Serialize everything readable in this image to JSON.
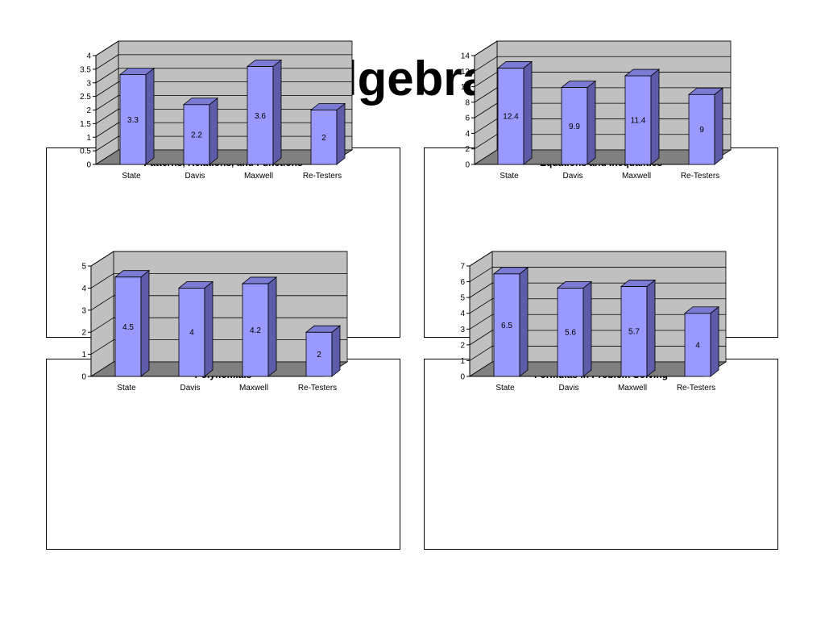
{
  "slide": {
    "title": "Algebra I"
  },
  "chart_data": [
    {
      "type": "bar",
      "title": "Patterns, Relations, and Functions",
      "categories": [
        "State",
        "Davis",
        "Maxwell",
        "Re-Testers"
      ],
      "values": [
        3.3,
        2.2,
        3.6,
        2
      ],
      "data_labels": [
        "3.3",
        "2.2",
        "3.6",
        "2"
      ],
      "ylim": [
        0,
        4
      ],
      "yticks": [
        "0",
        "0.5",
        "1",
        "1.5",
        "2",
        "2.5",
        "3",
        "3.5",
        "4"
      ],
      "grid": true,
      "three_d": true,
      "colors": {
        "bar_front": "#9999ff",
        "bar_side": "#5c5ca8",
        "bar_top": "#7b7bd4",
        "wall": "#c0c0c0",
        "floor": "#808080"
      }
    },
    {
      "type": "bar",
      "title": "Equations and Inequalities",
      "categories": [
        "State",
        "Davis",
        "Maxwell",
        "Re-Testers"
      ],
      "values": [
        12.4,
        9.9,
        11.4,
        9
      ],
      "data_labels": [
        "12.4",
        "9.9",
        "11.4",
        "9"
      ],
      "ylim": [
        0,
        14
      ],
      "yticks": [
        "0",
        "2",
        "4",
        "6",
        "8",
        "10",
        "12",
        "14"
      ],
      "grid": true,
      "three_d": true,
      "colors": {
        "bar_front": "#9999ff",
        "bar_side": "#5c5ca8",
        "bar_top": "#7b7bd4",
        "wall": "#c0c0c0",
        "floor": "#808080"
      }
    },
    {
      "type": "bar",
      "title": "Polynomials",
      "categories": [
        "State",
        "Davis",
        "Maxwell",
        "Re-Testers"
      ],
      "values": [
        4.5,
        4,
        4.2,
        2
      ],
      "data_labels": [
        "4.5",
        "4",
        "4.2",
        "2"
      ],
      "ylim": [
        0,
        5
      ],
      "yticks": [
        "0",
        "1",
        "2",
        "3",
        "4",
        "5"
      ],
      "grid": true,
      "three_d": true,
      "colors": {
        "bar_front": "#9999ff",
        "bar_side": "#5c5ca8",
        "bar_top": "#7b7bd4",
        "wall": "#c0c0c0",
        "floor": "#808080"
      }
    },
    {
      "type": "bar",
      "title": "Formulas in Problem Solving",
      "categories": [
        "State",
        "Davis",
        "Maxwell",
        "Re-Testers"
      ],
      "values": [
        6.5,
        5.6,
        5.7,
        4
      ],
      "data_labels": [
        "6.5",
        "5.6",
        "5.7",
        "4"
      ],
      "ylim": [
        0,
        7
      ],
      "yticks": [
        "0",
        "1",
        "2",
        "3",
        "4",
        "5",
        "6",
        "7"
      ],
      "grid": true,
      "three_d": true,
      "colors": {
        "bar_front": "#9999ff",
        "bar_side": "#5c5ca8",
        "bar_top": "#7b7bd4",
        "wall": "#c0c0c0",
        "floor": "#808080"
      }
    }
  ]
}
